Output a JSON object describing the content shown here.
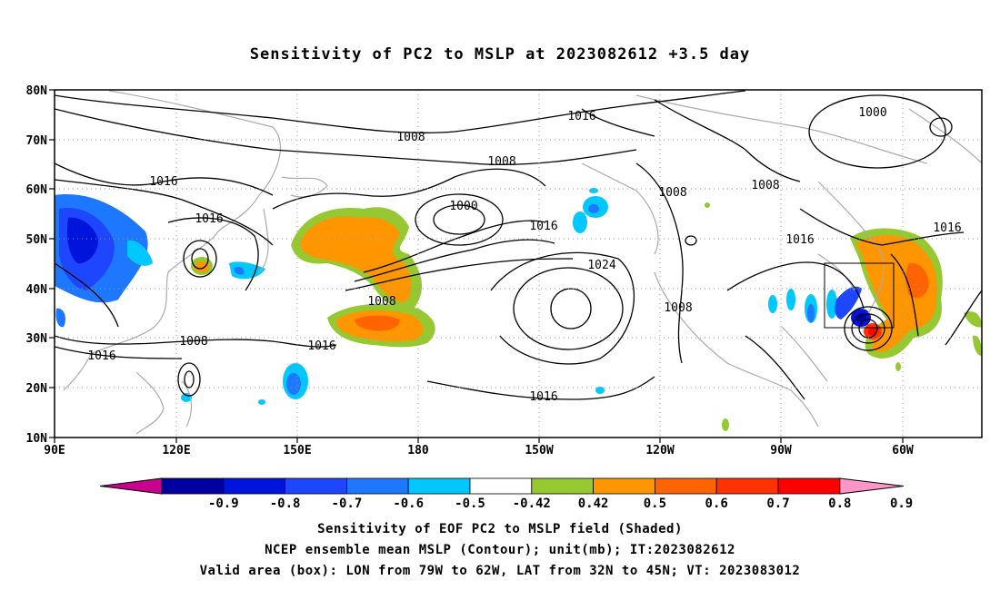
{
  "title": "Sensitivity of PC2 to MSLP at 2023082612 +3.5 day",
  "lat_labels": [
    "80N",
    "70N",
    "60N",
    "50N",
    "40N",
    "30N",
    "20N",
    "10N"
  ],
  "lon_labels": [
    "90E",
    "120E",
    "150E",
    "180",
    "150W",
    "120W",
    "90W",
    "60W"
  ],
  "colorbar": {
    "labels": [
      "-0.9",
      "-0.8",
      "-0.7",
      "-0.6",
      "-0.5",
      "-0.42",
      "0.42",
      "0.5",
      "0.6",
      "0.7",
      "0.8",
      "0.9"
    ],
    "colors": [
      "#c8008c",
      "#0000a0",
      "#0014dc",
      "#1e46ff",
      "#1e78ff",
      "#00c8ff",
      "#ffffff",
      "#96c832",
      "#ff9600",
      "#ff6400",
      "#ff3200",
      "#ff0000",
      "#ff96c8"
    ]
  },
  "contour_labels": {
    "c1016_top": "1016",
    "c1008_a": "1008",
    "c1008_b": "1008",
    "c1000_top": "1000",
    "c1016_w": "1016",
    "c1016_w2": "1016",
    "c1000_low": "1000",
    "c1016_mid": "1016",
    "c1024": "1024",
    "c1008_low": "1008",
    "c1008_s": "1008",
    "c1016_s": "1016",
    "c1016_sw": "1016",
    "c1016_bottom": "1016",
    "c1008_e": "1008",
    "c1008_e2": "1008",
    "c1008_na": "1008",
    "c1016_na": "1016",
    "c1016_ne": "1016"
  },
  "captions": {
    "line1": "Sensitivity of EOF PC2 to MSLP field (Shaded)",
    "line2": "NCEP ensemble mean MSLP (Contour); unit(mb); IT:2023082612",
    "line3": "Valid area (box): LON from 79W to 62W, LAT from 32N to 45N; VT: 2023083012"
  },
  "valid_box": {
    "lon_w": -79,
    "lon_e": -62,
    "lat_s": 32,
    "lat_n": 45
  }
}
